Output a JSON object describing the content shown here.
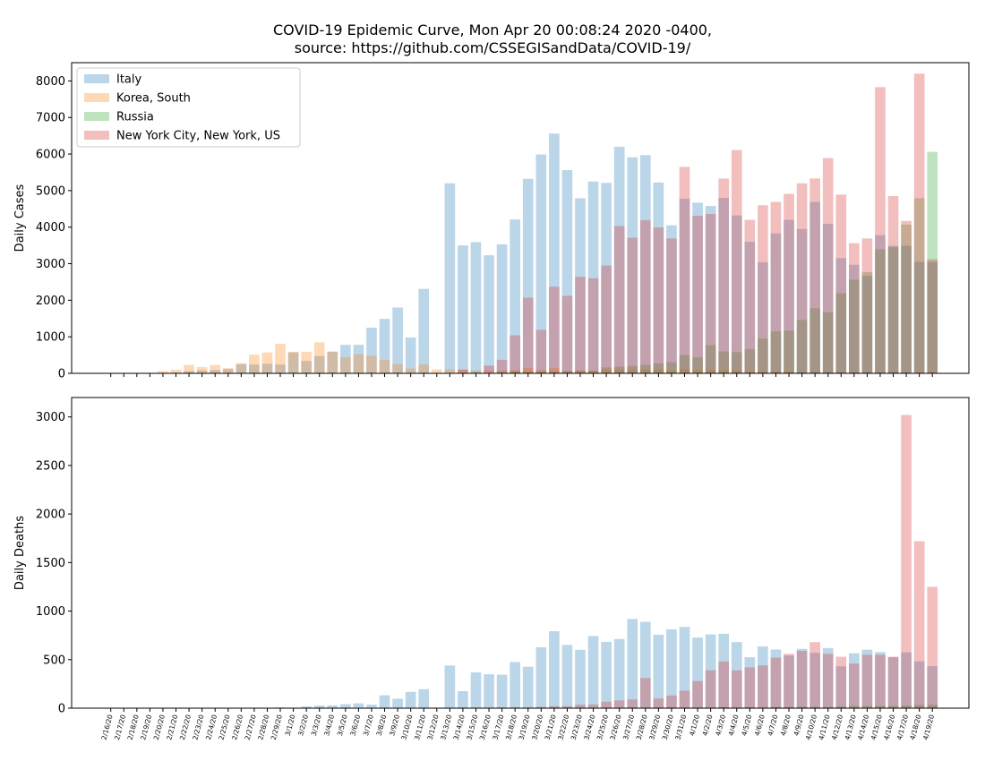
{
  "title": {
    "line1": "COVID-19 Epidemic Curve, Mon Apr 20 00:08:24 2020 -0400,",
    "line2": "source: https://github.com/CSSEGISandData/COVID-19/"
  },
  "colors": {
    "Italy": "#1f77b4",
    "Korea, South": "#ff7f0e",
    "Russia": "#2ca02c",
    "New York City, New York, US": "#d62728"
  },
  "chart_data": [
    {
      "type": "bar",
      "ylabel": "Daily Cases",
      "ylim": [
        0,
        8500
      ],
      "yticks": [
        0,
        1000,
        2000,
        3000,
        4000,
        5000,
        6000,
        7000,
        8000
      ],
      "bar_alpha": 0.3,
      "legend": {
        "position": "top-left",
        "entries": [
          "Italy",
          "Korea, South",
          "Russia",
          "New York City, New York, US"
        ]
      },
      "categories": [
        "2/16/20",
        "2/17/20",
        "2/18/20",
        "2/19/20",
        "2/20/20",
        "2/21/20",
        "2/22/20",
        "2/23/20",
        "2/24/20",
        "2/25/20",
        "2/26/20",
        "2/27/20",
        "2/28/20",
        "2/29/20",
        "3/1/20",
        "3/2/20",
        "3/3/20",
        "3/4/20",
        "3/5/20",
        "3/6/20",
        "3/7/20",
        "3/8/20",
        "3/9/20",
        "3/10/20",
        "3/11/20",
        "3/12/20",
        "3/13/20",
        "3/14/20",
        "3/15/20",
        "3/16/20",
        "3/17/20",
        "3/18/20",
        "3/19/20",
        "3/20/20",
        "3/21/20",
        "3/22/20",
        "3/23/20",
        "3/24/20",
        "3/25/20",
        "3/26/20",
        "3/27/20",
        "3/28/20",
        "3/29/20",
        "3/30/20",
        "3/31/20",
        "4/1/20",
        "4/2/20",
        "4/3/20",
        "4/4/20",
        "4/5/20",
        "4/6/20",
        "4/7/20",
        "4/8/20",
        "4/9/20",
        "4/10/20",
        "4/11/20",
        "4/12/20",
        "4/13/20",
        "4/14/20",
        "4/15/20",
        "4/16/20",
        "4/17/20",
        "4/18/20",
        "4/19/20"
      ],
      "series": [
        {
          "name": "Italy",
          "values": [
            0,
            0,
            0,
            0,
            0,
            16,
            60,
            80,
            90,
            120,
            250,
            240,
            260,
            240,
            570,
            340,
            470,
            590,
            780,
            780,
            1250,
            1490,
            1800,
            980,
            2310,
            0,
            5200,
            3500,
            3590,
            3230,
            3530,
            4210,
            5320,
            5990,
            6560,
            5560,
            4790,
            5250,
            5210,
            6200,
            5910,
            5970,
            5220,
            4050,
            4780,
            4670,
            4580,
            4800,
            4320,
            3600,
            3040,
            3830,
            4200,
            3950,
            4690,
            4090,
            3150,
            2970,
            2670,
            3780,
            3490,
            3490,
            3050,
            3050
          ]
        },
        {
          "name": "Korea, South",
          "values": [
            0,
            0,
            0,
            0,
            60,
            100,
            230,
            170,
            230,
            140,
            280,
            510,
            570,
            810,
            590,
            590,
            850,
            600,
            440,
            520,
            480,
            370,
            250,
            130,
            240,
            110,
            110,
            110,
            80,
            80,
            80,
            90,
            150,
            90,
            150,
            60,
            80,
            70,
            100,
            110,
            90,
            100,
            110,
            80,
            120,
            90,
            90,
            90,
            80,
            50,
            50,
            50,
            50,
            30,
            30,
            30,
            30,
            30,
            30,
            30,
            30,
            20,
            20,
            20
          ]
        },
        {
          "name": "Russia",
          "values": [
            0,
            0,
            0,
            0,
            0,
            0,
            0,
            0,
            0,
            0,
            0,
            0,
            0,
            0,
            0,
            0,
            0,
            0,
            0,
            0,
            0,
            0,
            0,
            0,
            0,
            0,
            10,
            0,
            30,
            0,
            30,
            50,
            50,
            50,
            60,
            60,
            70,
            70,
            160,
            180,
            200,
            230,
            270,
            300,
            500,
            440,
            770,
            600,
            580,
            660,
            950,
            1150,
            1170,
            1460,
            1780,
            1670,
            2190,
            2560,
            2770,
            3390,
            3450,
            4070,
            4790,
            6060
          ]
        },
        {
          "name": "New York City, New York, US",
          "values": [
            0,
            0,
            0,
            0,
            0,
            0,
            0,
            0,
            0,
            0,
            0,
            0,
            0,
            0,
            0,
            0,
            0,
            0,
            0,
            0,
            0,
            0,
            0,
            0,
            0,
            0,
            0,
            100,
            0,
            210,
            370,
            1040,
            2070,
            1190,
            2370,
            2120,
            2640,
            2600,
            2950,
            4030,
            3710,
            4190,
            3990,
            3690,
            5650,
            4310,
            4360,
            5330,
            6110,
            4200,
            4600,
            4690,
            4910,
            5200,
            5330,
            5890,
            4890,
            3560,
            3690,
            7830,
            4850,
            4170,
            8200,
            3120
          ]
        }
      ]
    },
    {
      "type": "bar",
      "ylabel": "Daily Deaths",
      "ylim": [
        0,
        3200
      ],
      "yticks": [
        0,
        500,
        1000,
        1500,
        2000,
        2500,
        3000
      ],
      "bar_alpha": 0.3,
      "categories": [
        "2/16/20",
        "2/17/20",
        "2/18/20",
        "2/19/20",
        "2/20/20",
        "2/21/20",
        "2/22/20",
        "2/23/20",
        "2/24/20",
        "2/25/20",
        "2/26/20",
        "2/27/20",
        "2/28/20",
        "2/29/20",
        "3/1/20",
        "3/2/20",
        "3/3/20",
        "3/4/20",
        "3/5/20",
        "3/6/20",
        "3/7/20",
        "3/8/20",
        "3/9/20",
        "3/10/20",
        "3/11/20",
        "3/12/20",
        "3/13/20",
        "3/14/20",
        "3/15/20",
        "3/16/20",
        "3/17/20",
        "3/18/20",
        "3/19/20",
        "3/20/20",
        "3/21/20",
        "3/22/20",
        "3/23/20",
        "3/24/20",
        "3/25/20",
        "3/26/20",
        "3/27/20",
        "3/28/20",
        "3/29/20",
        "3/30/20",
        "3/31/20",
        "4/1/20",
        "4/2/20",
        "4/3/20",
        "4/4/20",
        "4/5/20",
        "4/6/20",
        "4/7/20",
        "4/8/20",
        "4/9/20",
        "4/10/20",
        "4/11/20",
        "4/12/20",
        "4/13/20",
        "4/14/20",
        "4/15/20",
        "4/16/20",
        "4/17/20",
        "4/18/20",
        "4/19/20"
      ],
      "series": [
        {
          "name": "Italy",
          "values": [
            0,
            0,
            0,
            0,
            0,
            1,
            1,
            1,
            4,
            3,
            2,
            5,
            4,
            8,
            5,
            18,
            27,
            28,
            41,
            49,
            36,
            133,
            97,
            168,
            196,
            0,
            439,
            175,
            368,
            349,
            345,
            475,
            427,
            627,
            793,
            651,
            601,
            743,
            683,
            712,
            919,
            889,
            756,
            812,
            837,
            727,
            760,
            766,
            681,
            525,
            636,
            604,
            542,
            610,
            570,
            619,
            431,
            566,
            602,
            578,
            525,
            575,
            482,
            433
          ]
        },
        {
          "name": "Korea, South",
          "values": [
            0,
            0,
            0,
            1,
            1,
            0,
            1,
            3,
            2,
            3,
            1,
            1,
            0,
            1,
            4,
            3,
            6,
            4,
            7,
            3,
            2,
            6,
            2,
            3,
            6,
            6,
            5,
            6,
            3,
            4,
            6,
            9,
            3,
            1,
            8,
            2,
            1,
            1,
            5,
            5,
            8,
            5,
            8,
            6,
            5,
            3,
            3,
            2,
            3,
            3,
            3,
            6,
            8,
            4,
            4,
            3,
            3,
            3,
            0,
            4,
            2,
            1,
            2,
            2
          ]
        },
        {
          "name": "Russia",
          "values": [
            0,
            0,
            0,
            0,
            0,
            0,
            0,
            0,
            0,
            0,
            0,
            0,
            0,
            0,
            0,
            0,
            0,
            0,
            0,
            0,
            0,
            0,
            0,
            0,
            0,
            0,
            0,
            0,
            0,
            0,
            0,
            0,
            0,
            0,
            0,
            0,
            0,
            0,
            1,
            2,
            1,
            1,
            3,
            6,
            2,
            7,
            4,
            9,
            4,
            9,
            2,
            11,
            11,
            13,
            12,
            12,
            18,
            24,
            22,
            24,
            22,
            28,
            34,
            36
          ]
        },
        {
          "name": "New York City, New York, US",
          "values": [
            0,
            0,
            0,
            0,
            0,
            0,
            0,
            0,
            0,
            0,
            0,
            0,
            0,
            0,
            0,
            0,
            0,
            0,
            0,
            0,
            0,
            0,
            0,
            0,
            0,
            0,
            0,
            0,
            0,
            0,
            0,
            3,
            6,
            12,
            20,
            20,
            36,
            38,
            66,
            80,
            90,
            310,
            100,
            130,
            180,
            280,
            390,
            480,
            390,
            420,
            440,
            520,
            560,
            590,
            680,
            560,
            530,
            460,
            550,
            550,
            530,
            3020,
            1720,
            1250
          ]
        }
      ]
    }
  ]
}
